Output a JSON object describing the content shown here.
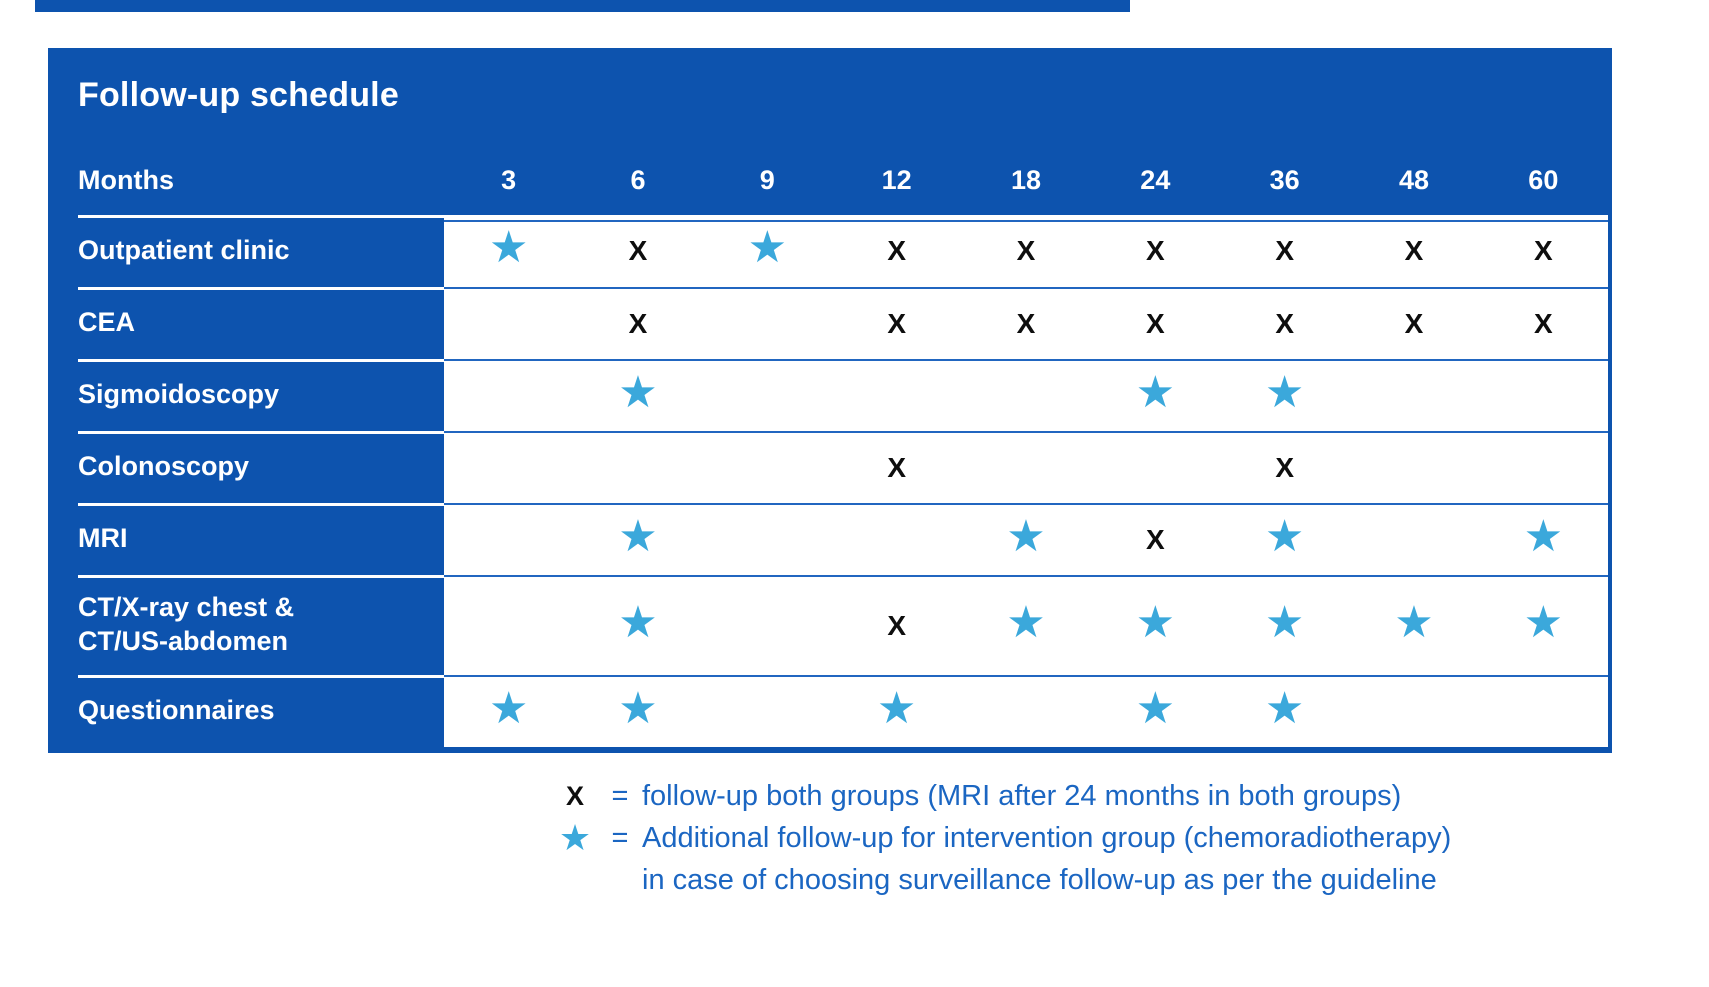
{
  "title": "Follow-up schedule",
  "months_label": "Months",
  "columns": [
    "3",
    "6",
    "9",
    "12",
    "18",
    "24",
    "36",
    "48",
    "60"
  ],
  "marks": {
    "x": "X",
    "star": "★"
  },
  "rows": [
    {
      "label": "Outpatient clinic",
      "cells": [
        "star",
        "x",
        "star",
        "x",
        "x",
        "x",
        "x",
        "x",
        "x"
      ]
    },
    {
      "label": "CEA",
      "cells": [
        "",
        "x",
        "",
        "x",
        "x",
        "x",
        "x",
        "x",
        "x"
      ]
    },
    {
      "label": "Sigmoidoscopy",
      "cells": [
        "",
        "star",
        "",
        "",
        "",
        "star",
        "star",
        "",
        ""
      ]
    },
    {
      "label": "Colonoscopy",
      "cells": [
        "",
        "",
        "",
        "x",
        "",
        "",
        "x",
        "",
        ""
      ]
    },
    {
      "label": "MRI",
      "cells": [
        "",
        "star",
        "",
        "",
        "star",
        "x",
        "star",
        "",
        "star"
      ]
    },
    {
      "label": "CT/X-ray chest &",
      "label2": "CT/US-abdomen",
      "cells": [
        "",
        "star",
        "",
        "x",
        "star",
        "star",
        "star",
        "star",
        "star"
      ]
    },
    {
      "label": "Questionnaires",
      "cells": [
        "star",
        "star",
        "",
        "star",
        "",
        "star",
        "star",
        "",
        ""
      ]
    }
  ],
  "legend": {
    "x_symbol": "X",
    "x_eq": "=",
    "x_text": "follow-up both groups (MRI after 24 months in both groups)",
    "star_symbol": "★",
    "star_eq": "=",
    "star_text": "Additional follow-up for intervention group (chemoradiotherapy)",
    "star_text2": "in case of choosing surveillance follow-up as per the guideline"
  },
  "colors": {
    "panel_blue": "#0d53ae",
    "row_line_blue": "#2166c0",
    "star_cyan": "#3ba8db",
    "legend_text_blue": "#1b66c2",
    "x_mark_black": "#0e0e0e"
  }
}
